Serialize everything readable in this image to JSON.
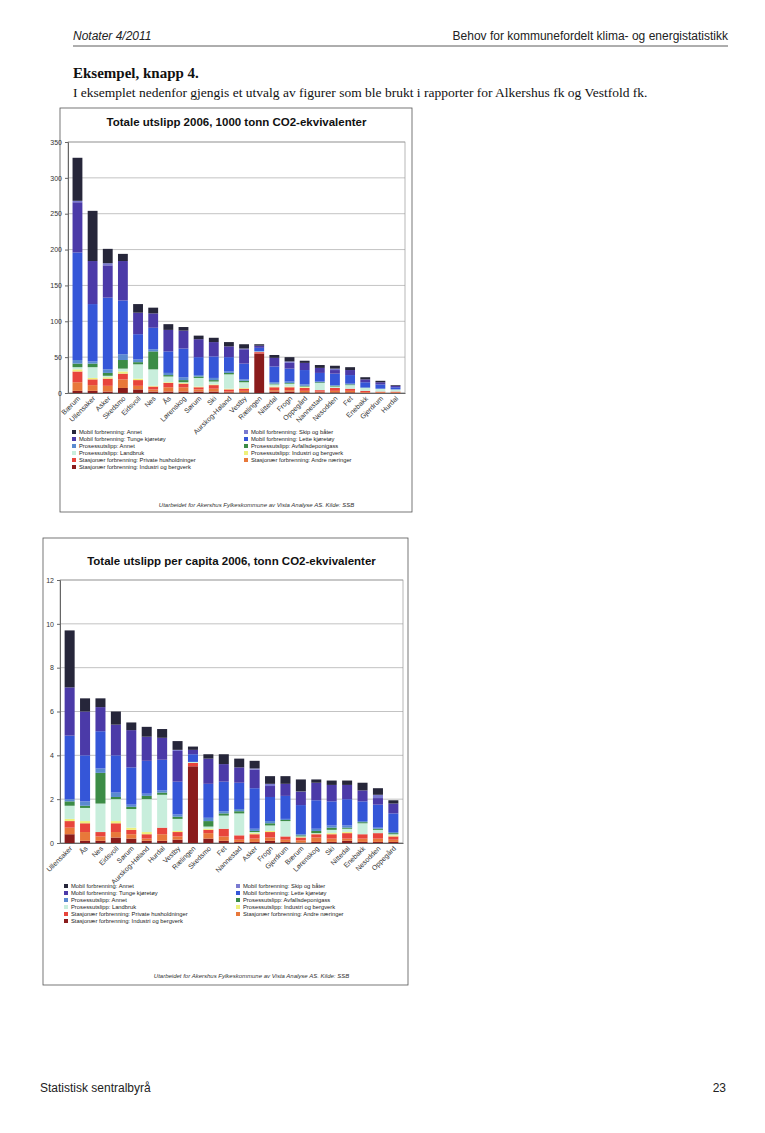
{
  "page": {
    "header_left": "Notater 4/2011",
    "header_right": "Behov for kommunefordelt klima- og energistatistikk",
    "heading": "Eksempel, knapp 4.",
    "paragraph": "I eksemplet nedenfor gjengis et utvalg av figurer som ble brukt i rapporter for Alkershus fk og Vestfold fk.",
    "footer_left": "Statistisk sentralbyrå",
    "page_number": "23"
  },
  "chart_data": [
    {
      "type": "bar",
      "stacked": true,
      "grid": true,
      "title": "Totale utslipp 2006, 1000 tonn CO2-ekvivalenter",
      "note": "Utarbeidet for Akershus Fylkeskommune av Vista Analyse AS. Kilde: SSB",
      "categories": [
        "Bærum",
        "Ullensaker",
        "Asker",
        "Skedsmo",
        "Eidsvoll",
        "Nes",
        "Ås",
        "Lørenskog",
        "Sørum",
        "Ski",
        "Aurskog-Høland",
        "Vestby",
        "Rælingen",
        "Nittedal",
        "Frogn",
        "Oppegård",
        "Nannestad",
        "Nesodden",
        "Fet",
        "Enebakk",
        "Gjerdrum",
        "Hurdal"
      ],
      "ylim": [
        0,
        350
      ],
      "yticks": [
        0,
        50,
        100,
        150,
        200,
        250,
        300,
        350
      ],
      "series": [
        {
          "name": "Mobil forbrenning: Annet",
          "color": "#26263a",
          "values": [
            60,
            70,
            20,
            10,
            12,
            8,
            8,
            5,
            5,
            6,
            6,
            6,
            2,
            4,
            6,
            3,
            4,
            4,
            4,
            3,
            2,
            1
          ]
        },
        {
          "name": "Mobil forbrenning: Skip og båter",
          "color": "#7a7ad0",
          "values": [
            2,
            0,
            3,
            0,
            0,
            0,
            0,
            0,
            0,
            0,
            0,
            1,
            0,
            0,
            2,
            0,
            0,
            2,
            0,
            0,
            0,
            0
          ]
        },
        {
          "name": "Mobil forbrenning: Tunge kjøretøy",
          "color": "#4b3aa8",
          "values": [
            70,
            60,
            45,
            55,
            30,
            20,
            30,
            25,
            25,
            20,
            15,
            20,
            3,
            12,
            8,
            10,
            7,
            5,
            7,
            4,
            3,
            2
          ]
        },
        {
          "name": "Mobil forbrenning: Lette kjøretøy",
          "color": "#3556d8",
          "values": [
            150,
            80,
            100,
            75,
            35,
            30,
            30,
            40,
            25,
            30,
            20,
            22,
            5,
            22,
            18,
            20,
            12,
            16,
            12,
            7,
            6,
            3
          ]
        },
        {
          "name": "Prosessutslipp: Annet",
          "color": "#5a8ad0",
          "values": [
            5,
            3,
            5,
            8,
            4,
            3,
            3,
            4,
            2,
            3,
            2,
            2,
            0,
            2,
            2,
            2,
            1,
            1,
            1,
            1,
            0,
            0
          ]
        },
        {
          "name": "Prosessutslipp: Avfallsdeponigass",
          "color": "#3c8c46",
          "values": [
            5,
            5,
            4,
            12,
            3,
            25,
            2,
            3,
            2,
            2,
            2,
            2,
            0,
            1,
            1,
            1,
            1,
            1,
            1,
            0,
            0,
            0
          ]
        },
        {
          "name": "Prosessutslipp: Landbruk",
          "color": "#c8eedc",
          "values": [
            3,
            15,
            2,
            4,
            20,
            23,
            8,
            1,
            12,
            4,
            20,
            8,
            1,
            3,
            4,
            1,
            10,
            2,
            5,
            4,
            4,
            3
          ]
        },
        {
          "name": "Prosessutslipp: Industri og bergverk",
          "color": "#eef07a",
          "values": [
            3,
            2,
            2,
            3,
            2,
            1,
            1,
            1,
            1,
            1,
            1,
            1,
            0,
            1,
            1,
            1,
            0,
            0,
            0,
            0,
            0,
            0
          ]
        },
        {
          "name": "Stasjonær forbrenning: Private husholdninger",
          "color": "#e8453c",
          "values": [
            15,
            8,
            10,
            8,
            8,
            4,
            6,
            5,
            3,
            5,
            3,
            3,
            2,
            4,
            4,
            4,
            2,
            4,
            3,
            2,
            1,
            1
          ]
        },
        {
          "name": "Stasjonær forbrenning: Andre næringer",
          "color": "#e8783a",
          "values": [
            12,
            8,
            8,
            12,
            5,
            3,
            6,
            6,
            3,
            4,
            1,
            2,
            0,
            2,
            2,
            2,
            1,
            2,
            2,
            1,
            1,
            1
          ]
        },
        {
          "name": "Stasjonær forbrenning: Industri og bergverk",
          "color": "#8a1c1c",
          "values": [
            3,
            3,
            2,
            7,
            5,
            2,
            2,
            2,
            2,
            2,
            1,
            1,
            55,
            2,
            2,
            1,
            1,
            1,
            1,
            0,
            0,
            0
          ]
        }
      ]
    },
    {
      "type": "bar",
      "stacked": true,
      "grid": true,
      "title": "Totale utslipp per capita 2006, tonn CO2-ekvivalenter",
      "note": "Utarbeidet for Akershus Fylkeskommune av Vista Analyse AS. Kilde: SSB",
      "categories": [
        "Ullensaker",
        "Ås",
        "Nes",
        "Eidsvoll",
        "Sørum",
        "Aurskog-Høland",
        "Hurdal",
        "Vestby",
        "Rælingen",
        "Skedsmo",
        "Fet",
        "Nannestad",
        "Asker",
        "Frogn",
        "Gjerdrum",
        "Bærum",
        "Lørenskog",
        "Ski",
        "Nittedal",
        "Enebakk",
        "Nesodden",
        "Oppegård"
      ],
      "ylim": [
        0,
        12
      ],
      "yticks": [
        0,
        2,
        4,
        6,
        8,
        10,
        12
      ],
      "series": [
        {
          "name": "Mobil forbrenning: Annet",
          "color": "#26263a",
          "values": [
            2.6,
            0.6,
            0.4,
            0.6,
            0.35,
            0.45,
            0.4,
            0.4,
            0.15,
            0.2,
            0.45,
            0.4,
            0.35,
            0.35,
            0.35,
            0.55,
            0.15,
            0.2,
            0.2,
            0.35,
            0.3,
            0.15
          ]
        },
        {
          "name": "Mobil forbrenning: Skip og båter",
          "color": "#7a7ad0",
          "values": [
            0,
            0,
            0,
            0,
            0,
            0,
            0,
            0.05,
            0,
            0,
            0,
            0,
            0.05,
            0.1,
            0,
            0.02,
            0,
            0,
            0,
            0,
            0.15,
            0
          ]
        },
        {
          "name": "Mobil forbrenning: Tunge kjøretøy",
          "color": "#4b3aa8",
          "values": [
            2.2,
            2.0,
            1.1,
            1.4,
            1.7,
            1.1,
            1.0,
            1.4,
            0.2,
            1.15,
            0.8,
            0.7,
            0.85,
            0.5,
            0.55,
            0.6,
            0.8,
            0.75,
            0.65,
            0.5,
            0.3,
            0.45
          ]
        },
        {
          "name": "Mobil forbrenning: Lette kjøretøy",
          "color": "#3556d8",
          "values": [
            2.9,
            2.1,
            1.7,
            1.7,
            1.7,
            1.5,
            1.4,
            1.5,
            0.35,
            1.55,
            1.35,
            1.2,
            1.85,
            1.1,
            1.05,
            1.33,
            1.3,
            1.1,
            1.2,
            0.9,
            1.05,
            0.85
          ]
        },
        {
          "name": "Prosessutslipp: Annet",
          "color": "#5a8ad0",
          "values": [
            0.1,
            0.2,
            0.2,
            0.2,
            0.1,
            0.1,
            0.1,
            0.1,
            0,
            0.15,
            0.1,
            0.1,
            0.1,
            0.1,
            0.05,
            0.05,
            0.1,
            0.1,
            0.1,
            0.05,
            0.05,
            0.05
          ]
        },
        {
          "name": "Prosessutslipp: Avfallsdeponigass",
          "color": "#3c8c46",
          "values": [
            0.2,
            0.1,
            1.4,
            0.1,
            0.1,
            0.15,
            0.1,
            0.1,
            0,
            0.25,
            0.1,
            0.1,
            0.05,
            0.1,
            0.05,
            0.05,
            0.1,
            0.1,
            0.05,
            0.05,
            0.05,
            0.05
          ]
        },
        {
          "name": "Prosessutslipp: Landbruk",
          "color": "#c8eedc",
          "values": [
            0.6,
            0.6,
            1.3,
            1.0,
            0.85,
            1.5,
            1.5,
            0.55,
            0.05,
            0.1,
            0.6,
            1.0,
            0.05,
            0.25,
            0.7,
            0.03,
            0.03,
            0.15,
            0.15,
            0.5,
            0.15,
            0.05
          ]
        },
        {
          "name": "Prosessutslipp: Industri og bergverk",
          "color": "#eef07a",
          "values": [
            0.1,
            0.1,
            0,
            0.1,
            0.1,
            0.1,
            0,
            0.05,
            0,
            0.05,
            0,
            0,
            0.05,
            0.05,
            0,
            0.02,
            0.02,
            0.05,
            0.05,
            0,
            0,
            0.05
          ]
        },
        {
          "name": "Stasjonær forbrenning: Private husholdninger",
          "color": "#e8453c",
          "values": [
            0.3,
            0.4,
            0.2,
            0.4,
            0.2,
            0.2,
            0.3,
            0.2,
            0.15,
            0.15,
            0.35,
            0.2,
            0.2,
            0.25,
            0.15,
            0.13,
            0.15,
            0.2,
            0.25,
            0.2,
            0.25,
            0.15
          ]
        },
        {
          "name": "Stasjonær forbrenning: Andre næringer",
          "color": "#e8783a",
          "values": [
            0.3,
            0.4,
            0.2,
            0.25,
            0.2,
            0.1,
            0.3,
            0.15,
            0,
            0.25,
            0.2,
            0.1,
            0.15,
            0.15,
            0.1,
            0.1,
            0.2,
            0.15,
            0.1,
            0.15,
            0.15,
            0.1
          ]
        },
        {
          "name": "Stasjonær forbrenning: Industri og bergverk",
          "color": "#8a1c1c",
          "values": [
            0.4,
            0.1,
            0.1,
            0.25,
            0.2,
            0.1,
            0.1,
            0.15,
            3.5,
            0.2,
            0.1,
            0.05,
            0.05,
            0.1,
            0.05,
            0.02,
            0.05,
            0.05,
            0.1,
            0.05,
            0.05,
            0.05
          ]
        }
      ]
    }
  ]
}
